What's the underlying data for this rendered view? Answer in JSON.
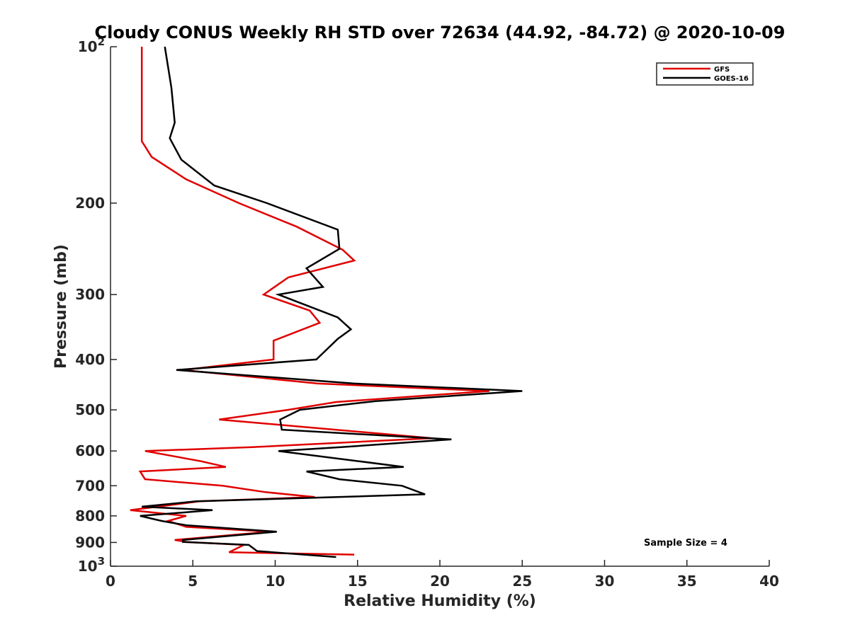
{
  "chart_data": {
    "type": "line",
    "title": "Cloudy CONUS Weekly RH STD over 72634 (44.92, -84.72) @ 2020-10-09",
    "xlabel": "Relative Humidity (%)",
    "ylabel": "Pressure (mb)",
    "xlim": [
      0,
      40
    ],
    "ylim": [
      100,
      1000
    ],
    "yscale": "log",
    "y_reversed": true,
    "x_ticks": [
      0,
      5,
      10,
      15,
      20,
      25,
      30,
      35,
      40
    ],
    "x_tick_labels": [
      "0",
      "5",
      "10",
      "15",
      "20",
      "25",
      "30",
      "35",
      "40"
    ],
    "y_ticks": [
      100,
      200,
      300,
      400,
      500,
      600,
      700,
      800,
      900,
      1000
    ],
    "y_tick_labels": [
      {
        "base": "10",
        "exp": "2"
      },
      {
        "base": "200",
        "exp": ""
      },
      {
        "base": "300",
        "exp": ""
      },
      {
        "base": "400",
        "exp": ""
      },
      {
        "base": "500",
        "exp": ""
      },
      {
        "base": "600",
        "exp": ""
      },
      {
        "base": "700",
        "exp": ""
      },
      {
        "base": "800",
        "exp": ""
      },
      {
        "base": "900",
        "exp": ""
      },
      {
        "base": "10",
        "exp": "3"
      }
    ],
    "grid": false,
    "legend_position": "top-right",
    "annotation": "Sample Size = 4",
    "series": [
      {
        "name": "GFS",
        "color": "#e00000",
        "points": [
          [
            1.9,
            100
          ],
          [
            1.9,
            115
          ],
          [
            1.9,
            130
          ],
          [
            1.9,
            150
          ],
          [
            1.9,
            152
          ],
          [
            2.5,
            163
          ],
          [
            4.6,
            180
          ],
          [
            7.8,
            200
          ],
          [
            11.3,
            222
          ],
          [
            14.1,
            246
          ],
          [
            14.8,
            258
          ],
          [
            10.8,
            278
          ],
          [
            9.3,
            300
          ],
          [
            12.1,
            322
          ],
          [
            12.7,
            340
          ],
          [
            9.9,
            368
          ],
          [
            9.9,
            400
          ],
          [
            4.4,
            419
          ],
          [
            12.6,
            445
          ],
          [
            23.0,
            460
          ],
          [
            13.7,
            483
          ],
          [
            10.8,
            500
          ],
          [
            6.6,
            522
          ],
          [
            16.5,
            556
          ],
          [
            19.5,
            567
          ],
          [
            8.6,
            590
          ],
          [
            2.1,
            600
          ],
          [
            5.5,
            628
          ],
          [
            7.0,
            644
          ],
          [
            1.8,
            657
          ],
          [
            2.1,
            680
          ],
          [
            6.8,
            700
          ],
          [
            9.4,
            720
          ],
          [
            12.4,
            736
          ],
          [
            5.4,
            750
          ],
          [
            1.2,
            780
          ],
          [
            4.6,
            800
          ],
          [
            3.5,
            818
          ],
          [
            4.6,
            840
          ],
          [
            9.7,
            858
          ],
          [
            3.9,
            890
          ],
          [
            4.6,
            898
          ],
          [
            8.1,
            910
          ],
          [
            7.2,
            940
          ],
          [
            14.8,
            950
          ]
        ]
      },
      {
        "name": "GOES-16",
        "color": "#000000",
        "points": [
          [
            3.3,
            100
          ],
          [
            3.7,
            120
          ],
          [
            3.9,
            140
          ],
          [
            3.6,
            150
          ],
          [
            4.3,
            165
          ],
          [
            6.3,
            185
          ],
          [
            9.5,
            200
          ],
          [
            13.8,
            225
          ],
          [
            13.9,
            245
          ],
          [
            11.9,
            267
          ],
          [
            12.9,
            290
          ],
          [
            10.2,
            300
          ],
          [
            13.8,
            332
          ],
          [
            14.6,
            350
          ],
          [
            13.8,
            365
          ],
          [
            12.5,
            400
          ],
          [
            4.0,
            419
          ],
          [
            14.8,
            445
          ],
          [
            25.0,
            460
          ],
          [
            16.1,
            481
          ],
          [
            11.5,
            500
          ],
          [
            10.3,
            522
          ],
          [
            10.4,
            546
          ],
          [
            20.7,
            570
          ],
          [
            14.0,
            590
          ],
          [
            10.2,
            600
          ],
          [
            17.8,
            644
          ],
          [
            11.9,
            657
          ],
          [
            13.9,
            680
          ],
          [
            17.7,
            700
          ],
          [
            19.1,
            727
          ],
          [
            5.2,
            750
          ],
          [
            1.9,
            768
          ],
          [
            6.2,
            780
          ],
          [
            1.8,
            800
          ],
          [
            3.1,
            818
          ],
          [
            4.6,
            834
          ],
          [
            10.1,
            858
          ],
          [
            4.4,
            890
          ],
          [
            4.4,
            898
          ],
          [
            8.4,
            910
          ],
          [
            8.9,
            935
          ],
          [
            13.7,
            960
          ]
        ]
      }
    ]
  }
}
